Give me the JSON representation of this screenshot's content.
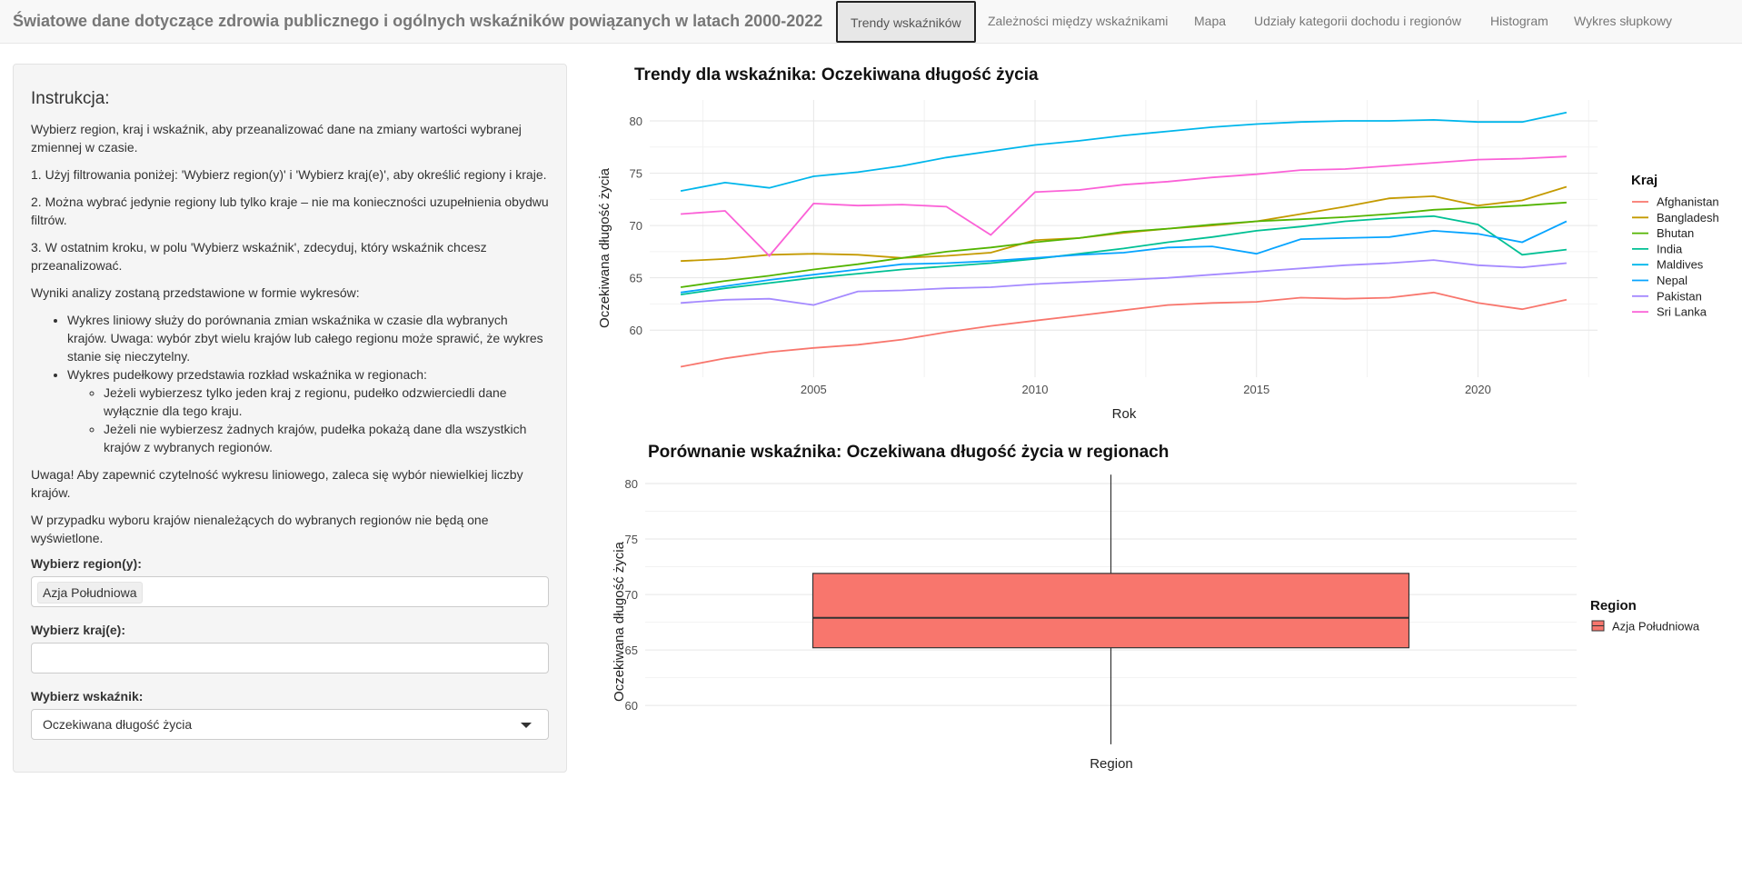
{
  "navbar": {
    "title": "Światowe dane dotyczące zdrowia publicznego i ogólnych wskaźników powiązanych w latach 2000-2022",
    "tabs": [
      {
        "label": "Trendy wskaźników",
        "active": true
      },
      {
        "label": "Zależności między wskaźnikami",
        "active": false
      },
      {
        "label": "Mapa",
        "active": false
      },
      {
        "label": "Udziały kategorii dochodu i regionów",
        "active": false
      },
      {
        "label": "Histogram",
        "active": false
      },
      {
        "label": "Wykres słupkowy",
        "active": false
      }
    ]
  },
  "sidebar": {
    "heading": "Instrukcja:",
    "p1": "Wybierz region, kraj i wskaźnik, aby przeanalizować dane na zmiany wartości wybranej zmiennej w czasie.",
    "p2": "1. Użyj filtrowania poniżej: 'Wybierz region(y)' i 'Wybierz kraj(e)', aby określić regiony i kraje.",
    "p3": "2. Można wybrać jedynie regiony lub tylko kraje – nie ma konieczności uzupełnienia obydwu filtrów.",
    "p4": "3. W ostatnim kroku, w polu 'Wybierz wskaźnik', zdecyduj, który wskaźnik chcesz przeanalizować.",
    "p5": "Wyniki analizy zostaną przedstawione w formie wykresów:",
    "li1": "Wykres liniowy służy do porównania zmian wskaźnika w czasie dla wybranych krajów. Uwaga: wybór zbyt wielu krajów lub całego regionu może sprawić, że wykres stanie się nieczytelny.",
    "li2": "Wykres pudełkowy przedstawia rozkład wskaźnika w regionach:",
    "li2a": "Jeżeli wybierzesz tylko jeden kraj z regionu, pudełko odzwierciedli dane wyłącznie dla tego kraju.",
    "li2b": "Jeżeli nie wybierzesz żadnych krajów, pudełka pokażą dane dla wszystkich krajów z wybranych regionów.",
    "p6": "Uwaga! Aby zapewnić czytelność wykresu liniowego, zaleca się wybór niewielkiej liczby krajów.",
    "p7": "W przypadku wyboru krajów nienależących do wybranych regionów nie będą one wyświetlone.",
    "region_label": "Wybierz region(y):",
    "region_selected": "Azja Południowa",
    "country_label": "Wybierz kraj(e):",
    "country_value": "",
    "indicator_label": "Wybierz wskaźnik:",
    "indicator_value": "Oczekiwana długość życia"
  },
  "chart_data": [
    {
      "type": "line",
      "title": "Trendy dla wskaźnika: Oczekiwana długość życia",
      "xlabel": "Rok",
      "ylabel": "Oczekiwana długość życia",
      "xlim": [
        2001.3,
        2022.7
      ],
      "ylim": [
        55.5,
        82.0
      ],
      "xticks": [
        2005,
        2010,
        2015,
        2020
      ],
      "yticks": [
        60,
        65,
        70,
        75,
        80
      ],
      "grid": true,
      "legend_title": "Kraj",
      "legend_position": "right",
      "x": [
        2002,
        2003,
        2004,
        2005,
        2006,
        2007,
        2008,
        2009,
        2010,
        2011,
        2012,
        2013,
        2014,
        2015,
        2016,
        2017,
        2018,
        2019,
        2020,
        2021,
        2022
      ],
      "series": [
        {
          "name": "Afghanistan",
          "color": "#F8766D",
          "values": [
            56.5,
            57.3,
            57.9,
            58.3,
            58.6,
            59.1,
            59.8,
            60.4,
            60.9,
            61.4,
            61.9,
            62.4,
            62.6,
            62.7,
            63.1,
            63.0,
            63.1,
            63.6,
            62.6,
            62.0,
            62.9
          ]
        },
        {
          "name": "Bangladesh",
          "color": "#C49A00",
          "values": [
            66.6,
            66.8,
            67.2,
            67.3,
            67.2,
            66.9,
            67.1,
            67.4,
            68.6,
            68.8,
            69.3,
            69.7,
            70.0,
            70.4,
            71.1,
            71.8,
            72.6,
            72.8,
            71.9,
            72.4,
            73.7
          ]
        },
        {
          "name": "Bhutan",
          "color": "#53B400",
          "values": [
            64.1,
            64.7,
            65.2,
            65.8,
            66.3,
            66.9,
            67.5,
            67.9,
            68.4,
            68.8,
            69.4,
            69.7,
            70.1,
            70.4,
            70.6,
            70.8,
            71.1,
            71.5,
            71.7,
            71.9,
            72.2
          ]
        },
        {
          "name": "India",
          "color": "#00C094",
          "values": [
            63.4,
            64.0,
            64.5,
            65.0,
            65.4,
            65.8,
            66.1,
            66.4,
            66.8,
            67.3,
            67.8,
            68.4,
            68.9,
            69.5,
            69.9,
            70.4,
            70.7,
            70.9,
            70.1,
            67.2,
            67.7
          ]
        },
        {
          "name": "Maldives",
          "color": "#00B6EB",
          "values": [
            73.3,
            74.1,
            73.6,
            74.7,
            75.1,
            75.7,
            76.5,
            77.1,
            77.7,
            78.1,
            78.6,
            79.0,
            79.4,
            79.7,
            79.9,
            80.0,
            80.0,
            80.1,
            79.9,
            79.9,
            80.8
          ]
        },
        {
          "name": "Nepal",
          "color": "#06A4FF",
          "values": [
            63.6,
            64.2,
            64.8,
            65.3,
            65.8,
            66.3,
            66.4,
            66.6,
            66.9,
            67.2,
            67.4,
            67.9,
            68.0,
            67.3,
            68.7,
            68.8,
            68.9,
            69.5,
            69.2,
            68.4,
            70.4
          ]
        },
        {
          "name": "Pakistan",
          "color": "#A58AFF",
          "values": [
            62.6,
            62.9,
            63.0,
            62.4,
            63.7,
            63.8,
            64.0,
            64.1,
            64.4,
            64.6,
            64.8,
            65.0,
            65.3,
            65.6,
            65.9,
            66.2,
            66.4,
            66.7,
            66.2,
            66.0,
            66.4
          ]
        },
        {
          "name": "Sri Lanka",
          "color": "#FB61D7",
          "values": [
            71.1,
            71.4,
            67.1,
            72.1,
            71.9,
            72.0,
            71.8,
            69.1,
            73.2,
            73.4,
            73.9,
            74.2,
            74.6,
            74.9,
            75.3,
            75.4,
            75.7,
            76.0,
            76.3,
            76.4,
            76.6
          ]
        }
      ]
    },
    {
      "type": "box",
      "title": "Porównanie wskaźnika: Oczekiwana długość życia w regionach",
      "xlabel": "Region",
      "ylabel": "Oczekiwana długość życia",
      "ylim": [
        56.0,
        81.8
      ],
      "yticks": [
        60,
        65,
        70,
        75,
        80
      ],
      "grid": true,
      "legend_title": "Region",
      "legend_position": "right",
      "boxes": [
        {
          "name": "Azja Południowa",
          "color": "#F8766D",
          "min": 56.5,
          "q1": 65.2,
          "median": 67.9,
          "q3": 71.9,
          "max": 80.8
        }
      ]
    }
  ]
}
